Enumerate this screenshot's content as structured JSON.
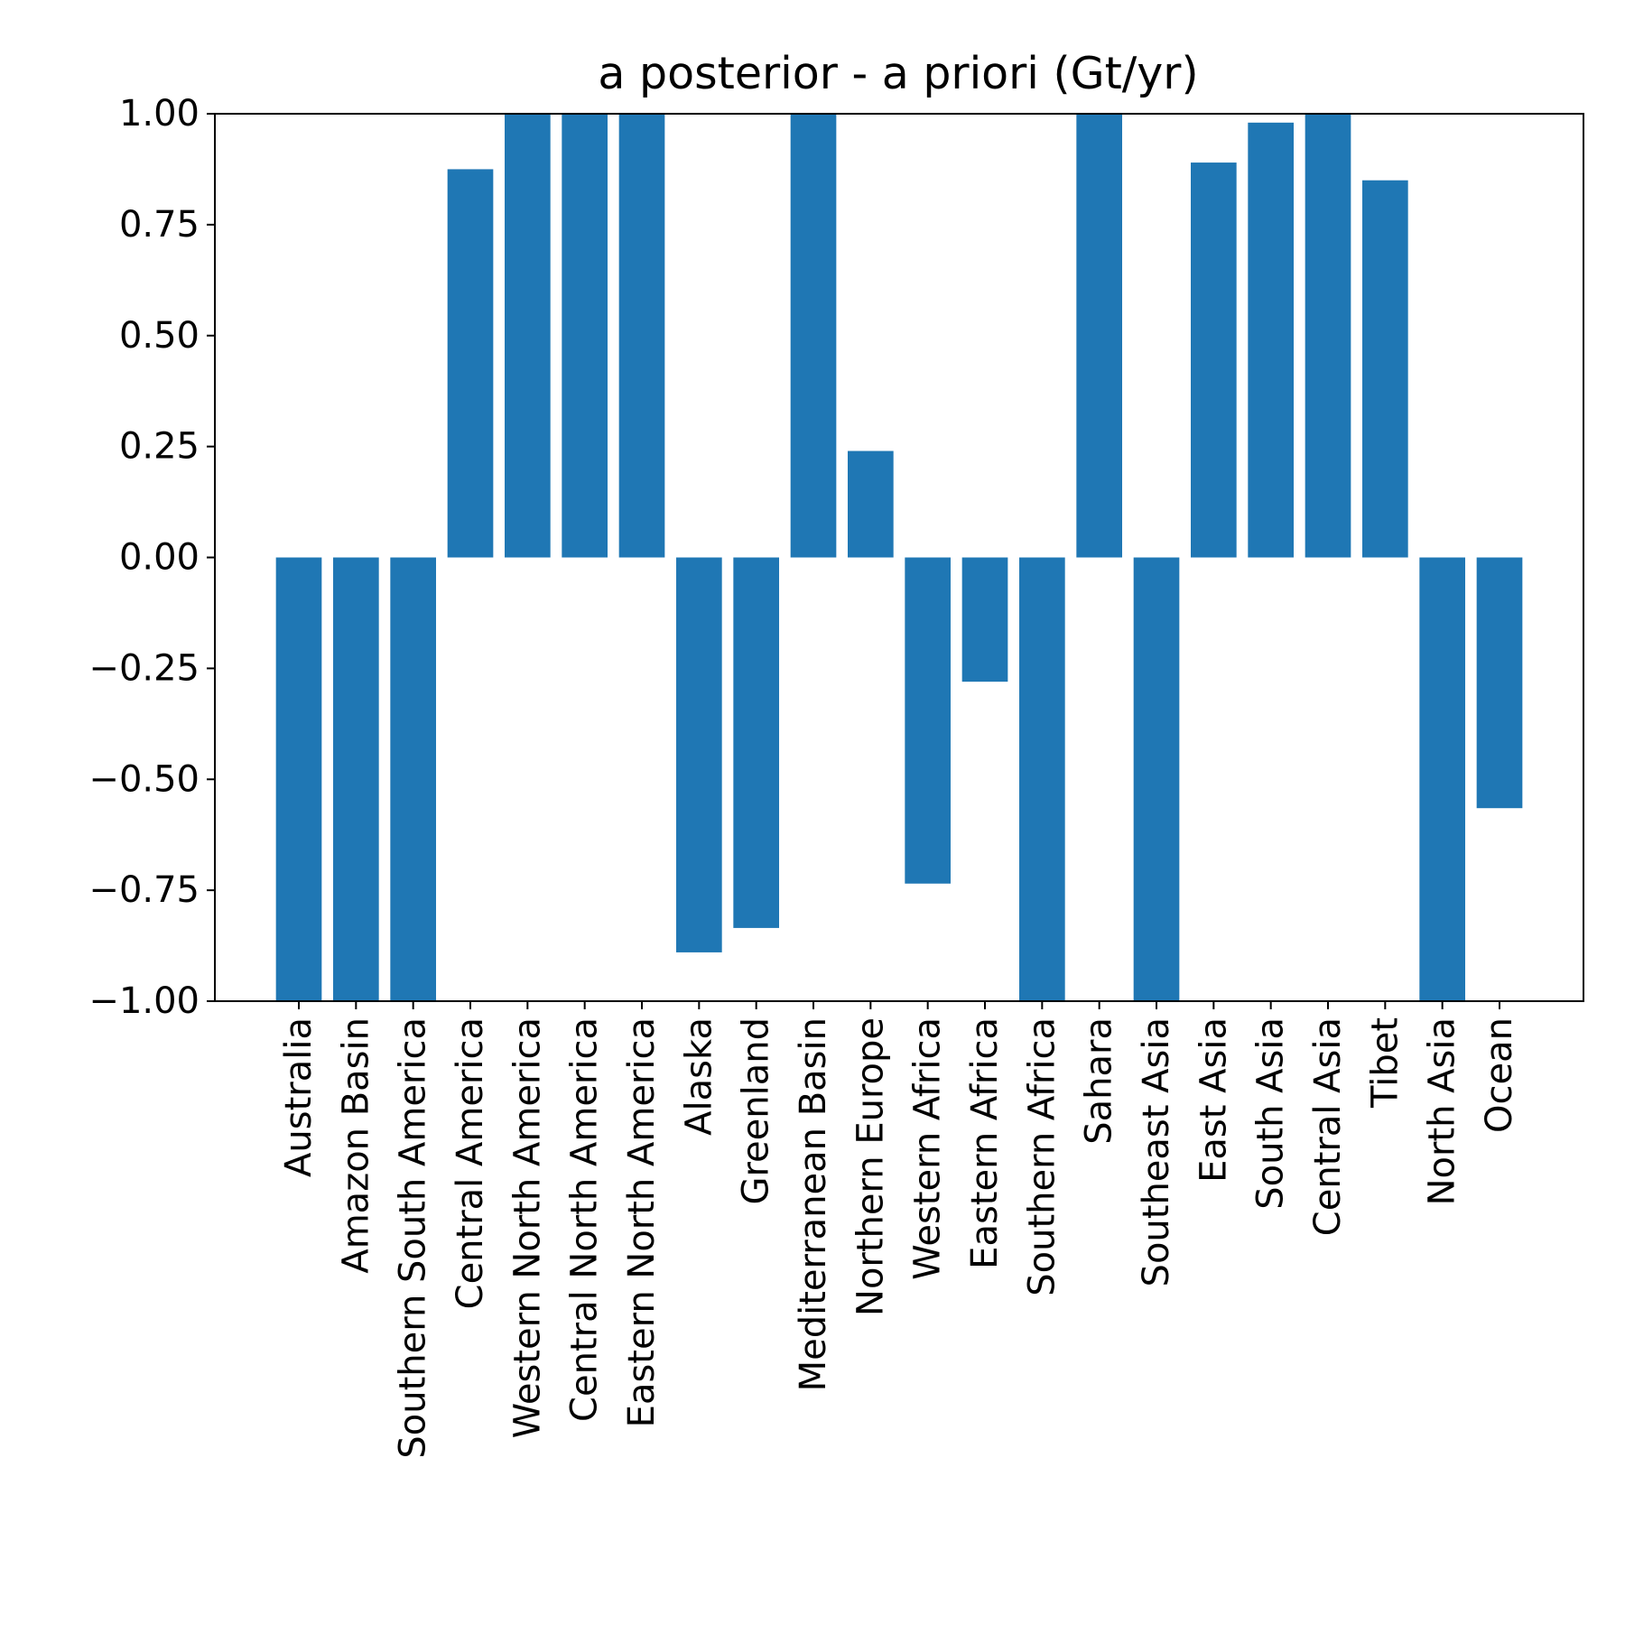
{
  "chart_data": {
    "type": "bar",
    "title": "a posterior - a priori (Gt/yr)",
    "xlabel": "",
    "ylabel": "",
    "ylim": [
      -1.0,
      1.0
    ],
    "yticks": [
      -1.0,
      -0.75,
      -0.5,
      -0.25,
      0.0,
      0.25,
      0.5,
      0.75,
      1.0
    ],
    "ytick_labels": [
      "−1.00",
      "−0.75",
      "−0.50",
      "−0.25",
      "0.00",
      "0.25",
      "0.50",
      "0.75",
      "1.00"
    ],
    "bar_color": "#1f77b4",
    "categories": [
      "Australia",
      "Amazon Basin",
      "Southern South America",
      "Central America",
      "Western North America",
      "Central North America",
      "Eastern North America",
      "Alaska",
      "Greenland",
      "Mediterranean Basin",
      "Northern Europe",
      "Western Africa",
      "Eastern Africa",
      "Southern Africa",
      "Sahara",
      "Southeast Asia",
      "East Asia",
      "South Asia",
      "Central Asia",
      "Tibet",
      "North Asia",
      "Ocean"
    ],
    "values": [
      -1.0,
      -1.0,
      -1.0,
      0.875,
      1.0,
      1.0,
      1.0,
      -0.89,
      -0.835,
      1.0,
      0.24,
      -0.735,
      -0.28,
      -1.0,
      1.0,
      -1.0,
      0.89,
      0.98,
      1.0,
      0.85,
      -1.0,
      -0.565
    ]
  }
}
